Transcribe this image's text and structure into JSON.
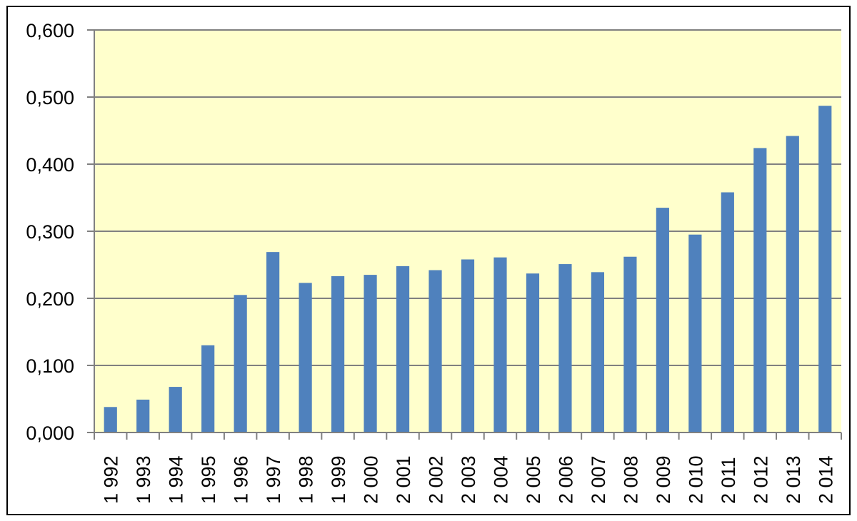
{
  "chart_data": {
    "type": "bar",
    "categories": [
      "1 992",
      "1 993",
      "1 994",
      "1 995",
      "1 996",
      "1 997",
      "1 998",
      "1 999",
      "2 000",
      "2 001",
      "2 002",
      "2 003",
      "2 004",
      "2 005",
      "2 006",
      "2 007",
      "2 008",
      "2 009",
      "2 010",
      "2 011",
      "2 012",
      "2 013",
      "2 014"
    ],
    "values": [
      0.038,
      0.049,
      0.068,
      0.13,
      0.205,
      0.269,
      0.223,
      0.233,
      0.235,
      0.248,
      0.242,
      0.258,
      0.261,
      0.237,
      0.251,
      0.239,
      0.262,
      0.335,
      0.295,
      0.358,
      0.424,
      0.442,
      0.487
    ],
    "y_ticks": [
      "0,000",
      "0,100",
      "0,200",
      "0,300",
      "0,400",
      "0,500",
      "0,600"
    ],
    "ylim": [
      0,
      0.6
    ],
    "title": "",
    "xlabel": "",
    "ylabel": "",
    "grid": true,
    "colors": {
      "bar": "#4f81bd",
      "plot_background": "#ffffcc",
      "gridline": "#808080",
      "axis": "#808080"
    }
  }
}
